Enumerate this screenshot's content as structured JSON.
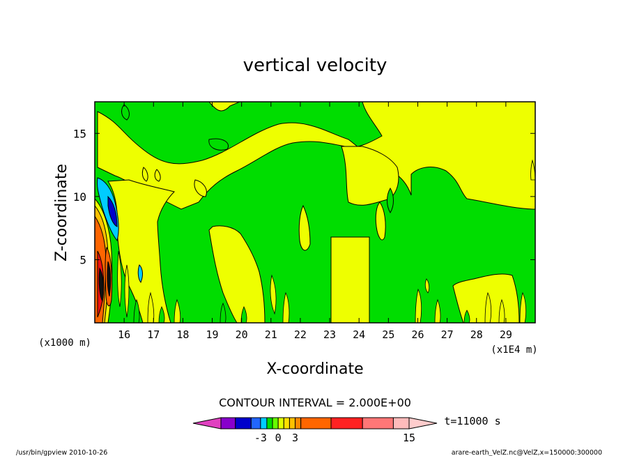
{
  "chart_data": {
    "type": "contour",
    "title": "vertical velocity",
    "xlabel": "X-coordinate",
    "ylabel": "Z-coordinate",
    "x_unit": "(x1E4 m)",
    "y_unit": "(x1000 m)",
    "xlim": [
      15,
      30
    ],
    "ylim": [
      0,
      17.5
    ],
    "x_ticks": [
      16,
      17,
      18,
      19,
      20,
      21,
      22,
      23,
      24,
      25,
      26,
      27,
      28,
      29
    ],
    "y_ticks": [
      5,
      10,
      15
    ],
    "contour_interval": "CONTOUR INTERVAL = 2.000E+00",
    "time_label": "t=11000 s",
    "colorbar": {
      "tick_labels": [
        "-3",
        "0",
        "3",
        "15"
      ],
      "tick_values": [
        -3,
        0,
        3,
        15
      ],
      "levels": [
        -9,
        -7,
        -5,
        -3,
        -2,
        -1,
        0,
        1,
        2,
        3,
        4,
        7,
        10,
        13,
        15
      ],
      "colors": [
        "#e040c0",
        "#8800cc",
        "#0000cc",
        "#2266ff",
        "#00ccff",
        "#00dd00",
        "#66ff00",
        "#e0ff00",
        "#ffe000",
        "#ffc000",
        "#ff8800",
        "#ff6600",
        "#ff2222",
        "#ff7777",
        "#ffbbbb",
        "#ffcccc"
      ]
    },
    "field_colors": {
      "green": "#00dd00",
      "yellow": "#eeff00",
      "orange": "#ff6600",
      "red": "#ee1111",
      "cyan": "#00ccff",
      "blue": "#0000cc"
    }
  },
  "footer": {
    "left": "/usr/bin/gpview   2010-10-26",
    "right": "arare-earth_VelZ.nc@VelZ,x=150000:300000"
  }
}
